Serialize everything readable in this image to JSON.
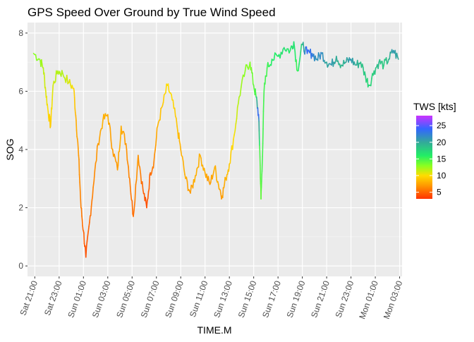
{
  "chart_data": {
    "type": "line",
    "title": "GPS Speed Over Ground by True Wind Speed",
    "xlabel": "TIME.M",
    "ylabel": "SOG",
    "ylim": [
      0,
      8
    ],
    "yticks": [
      0,
      2,
      4,
      6,
      8
    ],
    "grid": true,
    "x_tick_labels": [
      "Sat 21:00",
      "Sat 23:00",
      "Sun 01:00",
      "Sun 03:00",
      "Sun 05:00",
      "Sun 07:00",
      "Sun 09:00",
      "Sun 11:00",
      "Sun 13:00",
      "Sun 15:00",
      "Sun 17:00",
      "Sun 19:00",
      "Sun 21:00",
      "Sun 23:00",
      "Mon 01:00",
      "Mon 03:00"
    ],
    "x_tick_hours": [
      0,
      2,
      4,
      6,
      8,
      10,
      12,
      14,
      16,
      18,
      20,
      22,
      24,
      26,
      28,
      30
    ],
    "xlim_hours": [
      -0.6,
      30.2
    ],
    "legend": {
      "title": "TWS [kts]",
      "placement": "right",
      "ticks": [
        5,
        10,
        15,
        20,
        25
      ],
      "range": [
        3,
        28
      ]
    },
    "color_scale": [
      {
        "tws": 3,
        "color": "#ff3300"
      },
      {
        "tws": 7,
        "color": "#ff9900"
      },
      {
        "tws": 10,
        "color": "#ffdd00"
      },
      {
        "tws": 13,
        "color": "#88ff22"
      },
      {
        "tws": 16,
        "color": "#22ee66"
      },
      {
        "tws": 20,
        "color": "#33aa99"
      },
      {
        "tws": 24,
        "color": "#3366ff"
      },
      {
        "tws": 28,
        "color": "#cc33ff"
      }
    ],
    "series": [
      {
        "points": [
          {
            "x": -0.1,
            "y": 7.3,
            "tws": 13
          },
          {
            "x": 0.4,
            "y": 7.1,
            "tws": 13
          },
          {
            "x": 0.7,
            "y": 6.8,
            "tws": 12
          },
          {
            "x": 0.9,
            "y": 6.0,
            "tws": 11
          },
          {
            "x": 1.1,
            "y": 5.3,
            "tws": 10
          },
          {
            "x": 1.3,
            "y": 4.8,
            "tws": 9
          },
          {
            "x": 1.5,
            "y": 6.2,
            "tws": 11
          },
          {
            "x": 1.9,
            "y": 6.7,
            "tws": 12
          },
          {
            "x": 2.3,
            "y": 6.6,
            "tws": 12
          },
          {
            "x": 2.8,
            "y": 6.3,
            "tws": 11
          },
          {
            "x": 3.2,
            "y": 6.1,
            "tws": 10
          },
          {
            "x": 3.4,
            "y": 5.0,
            "tws": 8
          },
          {
            "x": 3.6,
            "y": 3.8,
            "tws": 7
          },
          {
            "x": 3.8,
            "y": 2.0,
            "tws": 6
          },
          {
            "x": 4.0,
            "y": 1.2,
            "tws": 5
          },
          {
            "x": 4.2,
            "y": 0.3,
            "tws": 4
          },
          {
            "x": 4.5,
            "y": 1.5,
            "tws": 5
          },
          {
            "x": 4.8,
            "y": 2.7,
            "tws": 6
          },
          {
            "x": 5.2,
            "y": 4.2,
            "tws": 7
          },
          {
            "x": 5.6,
            "y": 5.0,
            "tws": 8
          },
          {
            "x": 6.0,
            "y": 5.2,
            "tws": 8
          },
          {
            "x": 6.4,
            "y": 4.0,
            "tws": 7
          },
          {
            "x": 6.8,
            "y": 3.3,
            "tws": 7
          },
          {
            "x": 7.1,
            "y": 4.8,
            "tws": 8
          },
          {
            "x": 7.5,
            "y": 4.2,
            "tws": 7
          },
          {
            "x": 7.8,
            "y": 3.0,
            "tws": 6
          },
          {
            "x": 8.1,
            "y": 1.7,
            "tws": 5
          },
          {
            "x": 8.5,
            "y": 3.8,
            "tws": 7
          },
          {
            "x": 8.9,
            "y": 2.6,
            "tws": 5
          },
          {
            "x": 9.2,
            "y": 2.0,
            "tws": 4
          },
          {
            "x": 9.5,
            "y": 3.2,
            "tws": 5
          },
          {
            "x": 9.8,
            "y": 3.6,
            "tws": 6
          },
          {
            "x": 10.1,
            "y": 4.8,
            "tws": 8
          },
          {
            "x": 10.5,
            "y": 5.5,
            "tws": 9
          },
          {
            "x": 10.9,
            "y": 6.2,
            "tws": 10
          },
          {
            "x": 11.3,
            "y": 5.7,
            "tws": 10
          },
          {
            "x": 11.7,
            "y": 4.8,
            "tws": 9
          },
          {
            "x": 12.0,
            "y": 4.0,
            "tws": 8
          },
          {
            "x": 12.4,
            "y": 3.0,
            "tws": 8
          },
          {
            "x": 12.8,
            "y": 2.5,
            "tws": 7
          },
          {
            "x": 13.2,
            "y": 3.1,
            "tws": 8
          },
          {
            "x": 13.6,
            "y": 3.8,
            "tws": 8
          },
          {
            "x": 14.0,
            "y": 3.2,
            "tws": 8
          },
          {
            "x": 14.4,
            "y": 2.8,
            "tws": 7
          },
          {
            "x": 14.8,
            "y": 3.4,
            "tws": 8
          },
          {
            "x": 15.1,
            "y": 2.8,
            "tws": 8
          },
          {
            "x": 15.4,
            "y": 2.4,
            "tws": 7
          },
          {
            "x": 15.7,
            "y": 3.0,
            "tws": 8
          },
          {
            "x": 16.0,
            "y": 3.5,
            "tws": 9
          },
          {
            "x": 16.4,
            "y": 4.5,
            "tws": 10
          },
          {
            "x": 16.8,
            "y": 5.8,
            "tws": 12
          },
          {
            "x": 17.3,
            "y": 6.7,
            "tws": 13
          },
          {
            "x": 17.7,
            "y": 7.0,
            "tws": 13
          },
          {
            "x": 18.0,
            "y": 6.2,
            "tws": 14
          },
          {
            "x": 18.2,
            "y": 5.8,
            "tws": 15
          },
          {
            "x": 18.4,
            "y": 5.2,
            "tws": 25
          },
          {
            "x": 18.5,
            "y": 4.0,
            "tws": 15
          },
          {
            "x": 18.6,
            "y": 2.3,
            "tws": 14
          },
          {
            "x": 18.7,
            "y": 3.5,
            "tws": 15
          },
          {
            "x": 18.85,
            "y": 6.0,
            "tws": 15
          },
          {
            "x": 19.1,
            "y": 6.8,
            "tws": 15
          },
          {
            "x": 19.5,
            "y": 7.1,
            "tws": 16
          },
          {
            "x": 20.0,
            "y": 7.2,
            "tws": 16
          },
          {
            "x": 20.5,
            "y": 7.5,
            "tws": 17
          },
          {
            "x": 21.0,
            "y": 7.4,
            "tws": 16
          },
          {
            "x": 21.3,
            "y": 7.7,
            "tws": 17
          },
          {
            "x": 21.6,
            "y": 6.7,
            "tws": 15
          },
          {
            "x": 22.0,
            "y": 7.6,
            "tws": 18
          },
          {
            "x": 22.4,
            "y": 7.3,
            "tws": 24
          },
          {
            "x": 22.8,
            "y": 7.3,
            "tws": 23
          },
          {
            "x": 23.2,
            "y": 7.1,
            "tws": 21
          },
          {
            "x": 23.6,
            "y": 7.3,
            "tws": 22
          },
          {
            "x": 24.0,
            "y": 7.0,
            "tws": 20
          },
          {
            "x": 24.4,
            "y": 6.9,
            "tws": 21
          },
          {
            "x": 24.8,
            "y": 7.2,
            "tws": 20
          },
          {
            "x": 25.2,
            "y": 6.9,
            "tws": 19
          },
          {
            "x": 25.6,
            "y": 7.0,
            "tws": 20
          },
          {
            "x": 26.0,
            "y": 7.1,
            "tws": 21
          },
          {
            "x": 26.4,
            "y": 6.9,
            "tws": 20
          },
          {
            "x": 26.8,
            "y": 7.0,
            "tws": 19
          },
          {
            "x": 27.2,
            "y": 6.5,
            "tws": 18
          },
          {
            "x": 27.5,
            "y": 6.2,
            "tws": 17
          },
          {
            "x": 27.9,
            "y": 6.7,
            "tws": 18
          },
          {
            "x": 28.3,
            "y": 7.0,
            "tws": 19
          },
          {
            "x": 28.7,
            "y": 6.9,
            "tws": 18
          },
          {
            "x": 29.1,
            "y": 7.1,
            "tws": 19
          },
          {
            "x": 29.5,
            "y": 7.4,
            "tws": 21
          },
          {
            "x": 29.9,
            "y": 7.1,
            "tws": 20
          }
        ]
      }
    ]
  }
}
